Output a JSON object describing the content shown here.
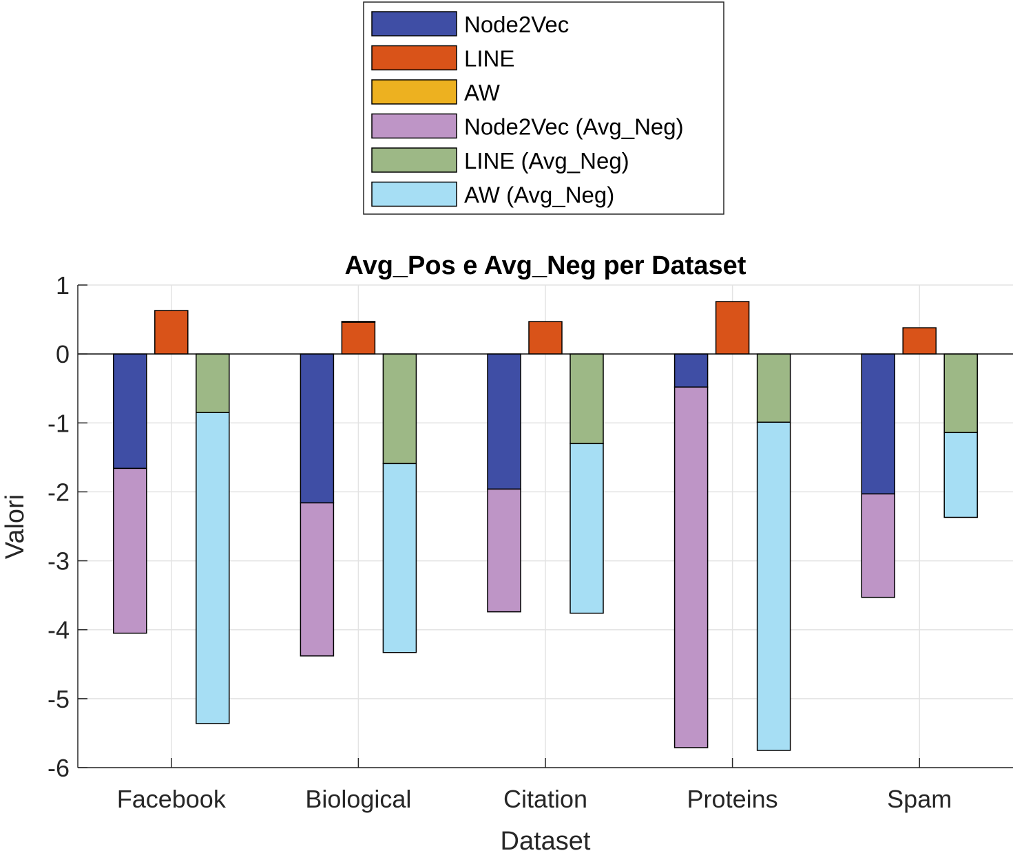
{
  "chart_data": {
    "type": "bar",
    "title": "Avg_Pos e Avg_Neg per Dataset",
    "xlabel": "Dataset",
    "ylabel": "Valori",
    "ylim": [
      -6,
      1
    ],
    "yticks": [
      1,
      0,
      -1,
      -2,
      -3,
      -4,
      -5,
      -6
    ],
    "grid": true,
    "legend_position": "top-center (outside)",
    "categories": [
      "Facebook",
      "Biological",
      "Citation",
      "Proteins",
      "Spam"
    ],
    "series": [
      {
        "name": "Node2Vec",
        "color": "#0072BD",
        "display_color": "#3F4EA5",
        "values": [
          -1.66,
          -2.16,
          -1.96,
          -0.48,
          -2.03
        ]
      },
      {
        "name": "LINE",
        "color": "#D95319",
        "values": [
          0.63,
          0.47,
          0.47,
          0.76,
          0.38
        ]
      },
      {
        "name": "AW",
        "color": "#EDB120",
        "values": [
          0.0,
          0.01,
          0.0,
          0.0,
          0.0
        ]
      },
      {
        "name": "Node2Vec (Avg_Neg)",
        "color": "#BE95C6",
        "values": [
          -4.05,
          -4.38,
          -3.74,
          -5.71,
          -3.53
        ]
      },
      {
        "name": "LINE (Avg_Neg)",
        "color": "#BCD696",
        "display_color": "#9DB886",
        "values": [
          -0.85,
          -1.59,
          -1.3,
          -0.99,
          -1.14
        ]
      },
      {
        "name": "AW (Avg_Neg)",
        "color": "#A6DEF4",
        "values": [
          -5.36,
          -4.33,
          -3.76,
          -5.75,
          -2.37
        ]
      }
    ]
  }
}
